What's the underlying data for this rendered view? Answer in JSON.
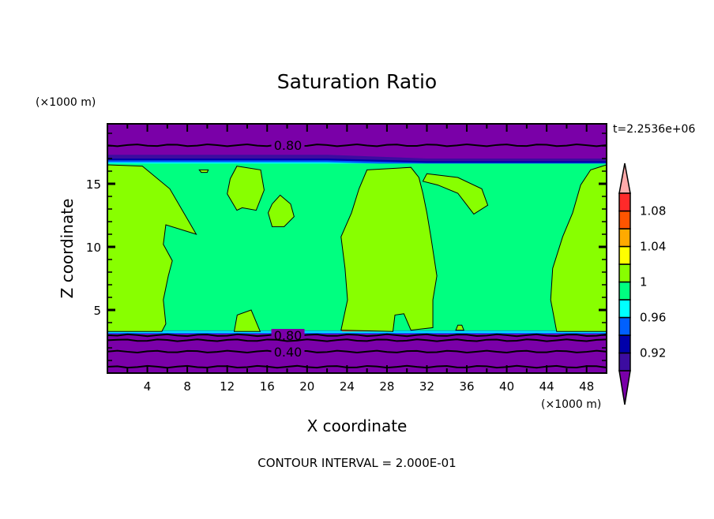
{
  "chart_data": {
    "type": "heatmap",
    "subtype": "filled-contour",
    "title": "Saturation Ratio",
    "xlabel": "X coordinate",
    "ylabel": "Z coordinate",
    "x_units": "(×1000 m)",
    "y_units": "(×1000 m)",
    "time_label": "t=2.2536e+06",
    "footer": "CONTOUR INTERVAL = 2.000E-01",
    "xlim": [
      0,
      50
    ],
    "ylim": [
      0,
      19.75
    ],
    "x_ticks": [
      4,
      8,
      12,
      16,
      20,
      24,
      28,
      32,
      36,
      40,
      44,
      48
    ],
    "x_tick_labels": [
      "4",
      "8",
      "12",
      "16",
      "20",
      "24",
      "28",
      "32",
      "36",
      "40",
      "44",
      "48"
    ],
    "y_ticks": [
      5,
      10,
      15
    ],
    "y_tick_labels": [
      "5",
      "10",
      "15"
    ],
    "colorbar": {
      "levels": [
        0.9,
        0.92,
        0.94,
        0.96,
        0.98,
        1.0,
        1.02,
        1.04,
        1.06,
        1.08,
        1.1
      ],
      "colors_low_to_high": [
        "#3c0ca0",
        "#0000aa",
        "#0060ff",
        "#00ffff",
        "#00ff80",
        "#88ff00",
        "#ffff00",
        "#ffaa00",
        "#ff5500",
        "#ff2a2a"
      ],
      "under_color": "#7a00a8",
      "over_color": "#ffaaaa",
      "tick_labels": [
        {
          "value": 0.92,
          "label": "0.92"
        },
        {
          "value": 0.96,
          "label": "0.96"
        },
        {
          "value": 1.0,
          "label": "1"
        },
        {
          "value": 1.04,
          "label": "1.04"
        },
        {
          "value": 1.08,
          "label": "1.08"
        }
      ]
    },
    "background_field": {
      "value_range": "0.98-1.00",
      "color": "#00ff80",
      "z_range": [
        3.3,
        16.7
      ]
    },
    "regions_above_1": [
      [
        [
          0,
          16.5
        ],
        [
          3.5,
          16.4
        ],
        [
          6.25,
          14.6
        ],
        [
          8.9,
          11
        ],
        [
          5.85,
          11.75
        ],
        [
          5.6,
          10.2
        ],
        [
          6.5,
          8.9
        ],
        [
          6.1,
          7.7
        ],
        [
          5.6,
          5.8
        ],
        [
          5.85,
          3.9
        ],
        [
          5.45,
          3.3
        ],
        [
          0,
          3.3
        ]
      ],
      [
        [
          12.7,
          3.3
        ],
        [
          13.0,
          4.6
        ],
        [
          14.4,
          5.0
        ],
        [
          15.3,
          3.3
        ]
      ],
      [
        [
          12.97,
          16.4
        ],
        [
          15.35,
          16.1
        ],
        [
          15.7,
          14.5
        ],
        [
          14.9,
          12.9
        ],
        [
          13.5,
          13.1
        ],
        [
          12.97,
          12.9
        ],
        [
          12.0,
          14.2
        ],
        [
          12.3,
          15.4
        ]
      ],
      [
        [
          17.3,
          14.1
        ],
        [
          18.35,
          13.4
        ],
        [
          18.7,
          12.4
        ],
        [
          17.7,
          11.6
        ],
        [
          16.5,
          11.6
        ],
        [
          16.1,
          12.7
        ],
        [
          16.5,
          13.4
        ]
      ],
      [
        [
          26.0,
          16.1
        ],
        [
          30.4,
          16.3
        ],
        [
          31.2,
          15.5
        ],
        [
          31.6,
          14.25
        ],
        [
          32.0,
          12.7
        ],
        [
          32.4,
          10.8
        ],
        [
          33.0,
          7.7
        ],
        [
          32.6,
          5.8
        ],
        [
          32.6,
          3.6
        ],
        [
          30.4,
          3.4
        ],
        [
          29.7,
          4.7
        ],
        [
          28.8,
          4.6
        ],
        [
          28.6,
          3.3
        ],
        [
          23.4,
          3.4
        ],
        [
          24.05,
          5.8
        ],
        [
          23.8,
          8.3
        ],
        [
          23.4,
          10.8
        ],
        [
          24.45,
          12.7
        ],
        [
          25.2,
          14.6
        ]
      ],
      [
        [
          32.0,
          15.8
        ],
        [
          35.1,
          15.5
        ],
        [
          37.5,
          14.6
        ],
        [
          38.1,
          13.3
        ],
        [
          36.7,
          12.6
        ],
        [
          35.1,
          14.25
        ],
        [
          33.1,
          14.9
        ],
        [
          31.6,
          15.2
        ]
      ],
      [
        [
          50,
          16.5
        ],
        [
          48.4,
          16.1
        ],
        [
          47.4,
          14.9
        ],
        [
          46.6,
          12.7
        ],
        [
          45.6,
          10.8
        ],
        [
          44.6,
          8.3
        ],
        [
          44.4,
          5.8
        ],
        [
          45.0,
          3.3
        ],
        [
          50,
          3.3
        ]
      ],
      [
        [
          34.9,
          3.4
        ],
        [
          35.1,
          3.8
        ],
        [
          35.5,
          3.8
        ],
        [
          35.7,
          3.4
        ]
      ],
      [
        [
          9.2,
          16.1
        ],
        [
          10.1,
          16.1
        ],
        [
          10.0,
          15.9
        ],
        [
          9.4,
          15.9
        ]
      ]
    ],
    "warm_strips_near_surface": [
      {
        "x": [
          0,
          2.0
        ],
        "z": [
          3.3,
          3.65
        ],
        "color": "#ff5500"
      },
      {
        "x": [
          23.5,
          27.6
        ],
        "z": [
          3.3,
          3.6
        ],
        "color": "#ff5500"
      },
      {
        "x": [
          46.5,
          50
        ],
        "z": [
          3.3,
          3.55
        ],
        "color": "#ffff00"
      }
    ],
    "contour_lines": [
      {
        "value": 0.8,
        "z": 18.05,
        "label": "0.80"
      },
      {
        "value": 0.8,
        "z": 3.0,
        "label": "0.80"
      },
      {
        "value": 0.6,
        "z": 2.6,
        "label": ""
      },
      {
        "value": 0.4,
        "z": 1.7,
        "label": "0.40"
      },
      {
        "value": 0.2,
        "z": 0.5,
        "label": ""
      }
    ]
  }
}
